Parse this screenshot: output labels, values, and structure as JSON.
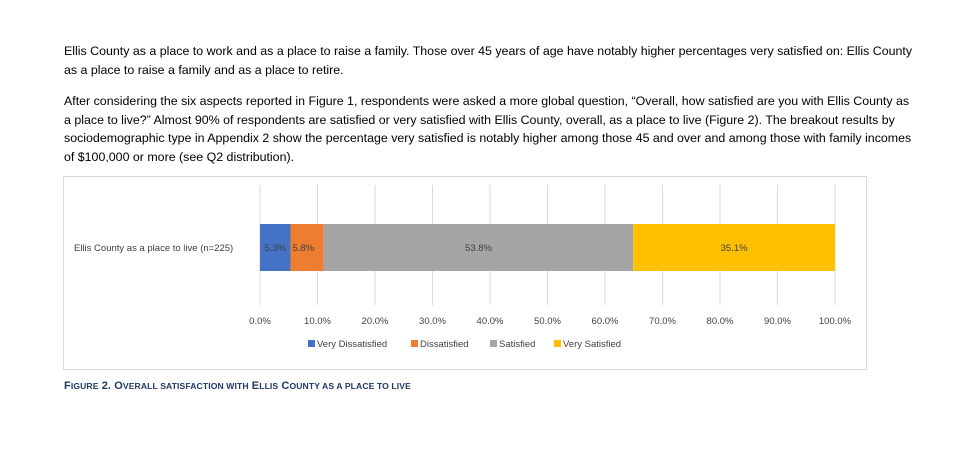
{
  "document": {
    "paragraph1": "Ellis County as a place to work and as a place to raise a family.  Those over 45 years of age have notably higher percentages very satisfied on: Ellis County as a place to raise a family and as a place to retire.",
    "paragraph2": "After considering the six aspects reported in Figure 1, respondents were asked a more global question, “Overall, how satisfied are you with Ellis County as a place to live?”  Almost 90% of respondents are satisfied or very satisfied with Ellis County, overall, as a place to live (Figure 2). The breakout results by sociodemographic type in Appendix 2 show the percentage very satisfied is notably higher among those 45 and over and among those with family incomes of $100,000 or more (see Q2 distribution).",
    "caption_parts": [
      {
        "text": "F",
        "small": false
      },
      {
        "text": "IGURE",
        "small": true
      },
      {
        "text": " 2. O",
        "small": false
      },
      {
        "text": "VERALL SATISFACTION WITH",
        "small": true
      },
      {
        "text": " E",
        "small": false
      },
      {
        "text": "LLIS",
        "small": true
      },
      {
        "text": " C",
        "small": false
      },
      {
        "text": "OUNTY AS A PLACE TO LIVE",
        "small": true
      }
    ]
  },
  "chart_data": {
    "type": "bar",
    "orientation": "horizontal-stacked",
    "categories": [
      "Ellis County as a place to live (n=225)"
    ],
    "series": [
      {
        "name": "Very Dissatisfied",
        "values": [
          5.3
        ],
        "label": "5.3%",
        "color": "#4472c4"
      },
      {
        "name": "Dissatisfied",
        "values": [
          5.8
        ],
        "label": "5.8%",
        "color": "#ed7d31"
      },
      {
        "name": "Satisfied",
        "values": [
          53.8
        ],
        "label": "53.8%",
        "color": "#a5a5a5"
      },
      {
        "name": "Very Satisfied",
        "values": [
          35.1
        ],
        "label": "35.1%",
        "color": "#ffc000"
      }
    ],
    "xlim": [
      0,
      100
    ],
    "x_ticks": [
      "0.0%",
      "10.0%",
      "20.0%",
      "30.0%",
      "40.0%",
      "50.0%",
      "60.0%",
      "70.0%",
      "80.0%",
      "90.0%",
      "100.0%"
    ],
    "grid": true,
    "legend": "bottom"
  }
}
